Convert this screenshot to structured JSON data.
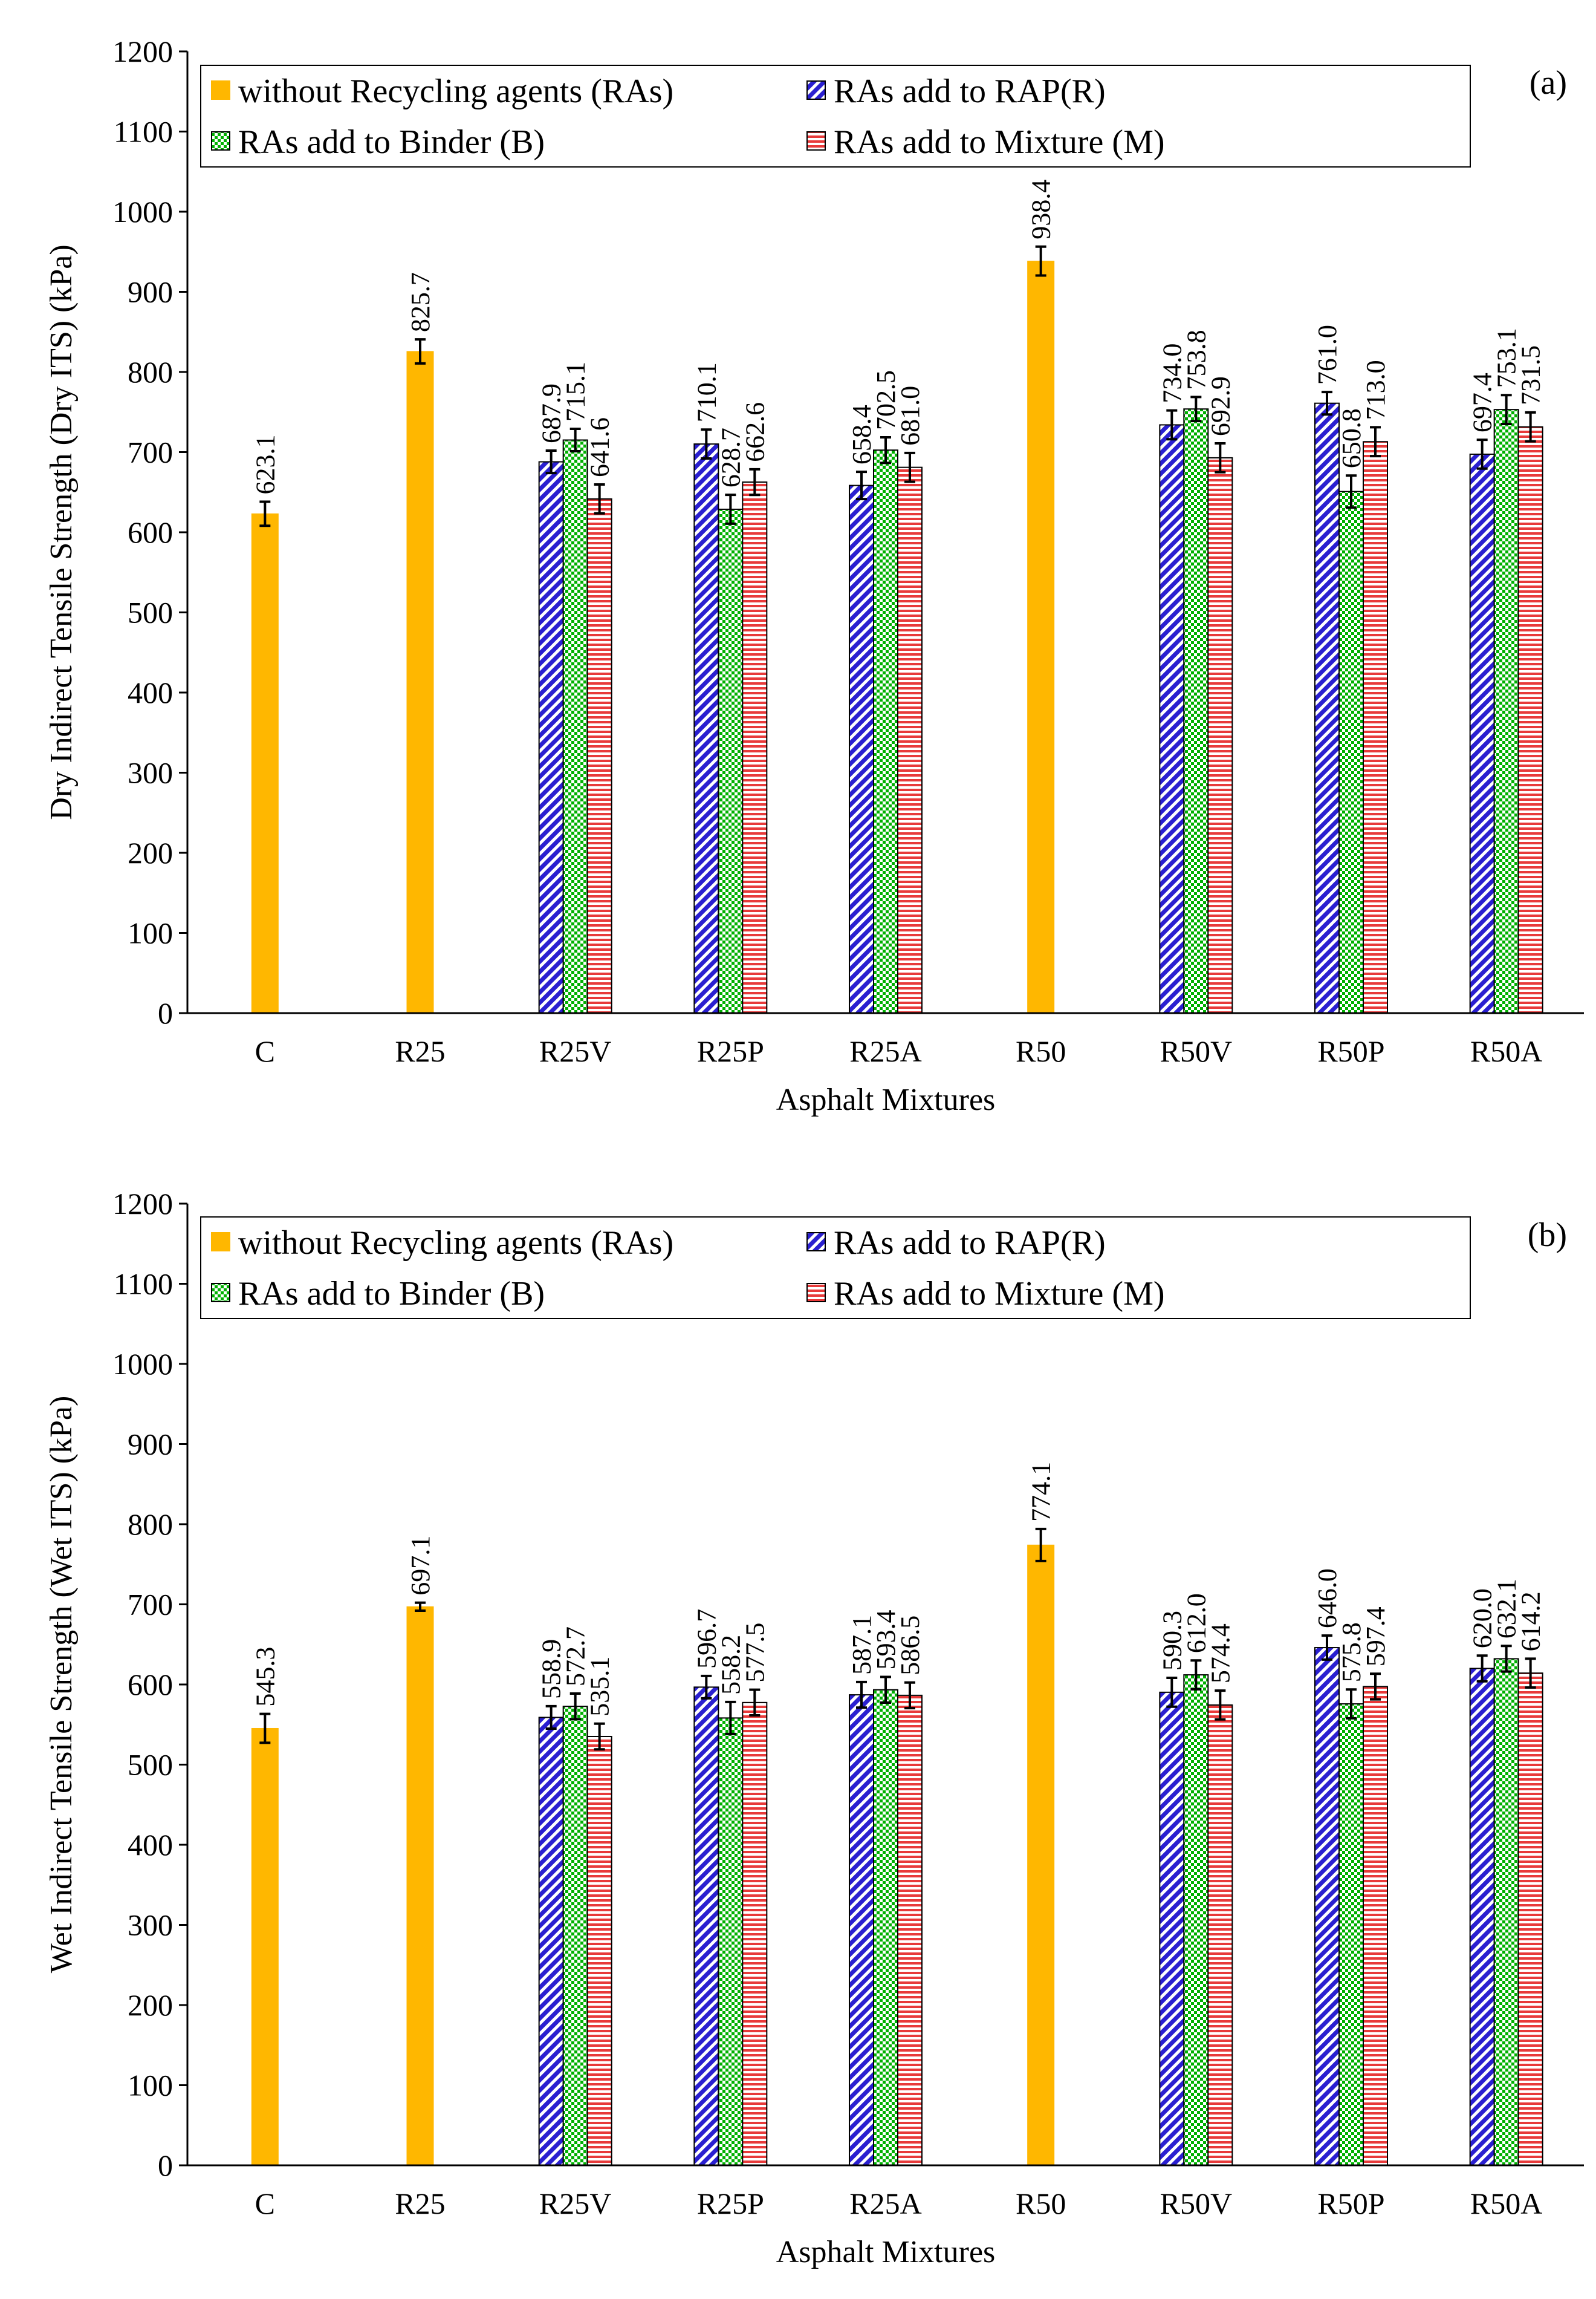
{
  "chart_data": [
    {
      "type": "bar",
      "panel_label": "(a)",
      "title": "",
      "xlabel": "Asphalt Mixtures",
      "ylabel": "Dry Indirect Tensile Strength (Dry ITS) (kPa)",
      "ylim": [
        0,
        1200
      ],
      "yticks": [
        0,
        100,
        200,
        300,
        400,
        500,
        600,
        700,
        800,
        900,
        1000,
        1100,
        1200
      ],
      "categories": [
        "C",
        "R25",
        "R25V",
        "R25P",
        "R25A",
        "R50",
        "R50V",
        "R50P",
        "R50A"
      ],
      "legend": [
        "without Recycling agents (RAs)",
        "RAs add to RAP(R)",
        "RAs add to Binder (B)",
        "RAs add to Mixture (M)"
      ],
      "legend_position": "top",
      "groups": [
        {
          "category": "C",
          "series": "none",
          "values": [
            623.1
          ],
          "labels": [
            "623.1"
          ],
          "errors": [
            15
          ]
        },
        {
          "category": "R25",
          "series": "none",
          "values": [
            825.7
          ],
          "labels": [
            "825.7"
          ],
          "errors": [
            15
          ]
        },
        {
          "category": "R25V",
          "series": "ras",
          "values": [
            687.9,
            715.1,
            641.6
          ],
          "labels": [
            "687.9",
            "715.1",
            "641.6"
          ],
          "errors": [
            14,
            14,
            18
          ]
        },
        {
          "category": "R25P",
          "series": "ras",
          "values": [
            710.1,
            628.7,
            662.6
          ],
          "labels": [
            "710.1",
            "628.7",
            "662.6"
          ],
          "errors": [
            18,
            18,
            16
          ]
        },
        {
          "category": "R25A",
          "series": "ras",
          "values": [
            658.4,
            702.5,
            681.0
          ],
          "labels": [
            "658.4",
            "702.5",
            "681.0"
          ],
          "errors": [
            17,
            16,
            18
          ]
        },
        {
          "category": "R50",
          "series": "none",
          "values": [
            938.4
          ],
          "labels": [
            "938.4"
          ],
          "errors": [
            18
          ]
        },
        {
          "category": "R50V",
          "series": "ras",
          "values": [
            734.0,
            753.8,
            692.9
          ],
          "labels": [
            "734.0",
            "753.8",
            "692.9"
          ],
          "errors": [
            18,
            15,
            18
          ]
        },
        {
          "category": "R50P",
          "series": "ras",
          "values": [
            761.0,
            650.8,
            713.0
          ],
          "labels": [
            "761.0",
            "650.8",
            "713.0"
          ],
          "errors": [
            14,
            20,
            18
          ]
        },
        {
          "category": "R50A",
          "series": "ras",
          "values": [
            697.4,
            753.1,
            731.5
          ],
          "labels": [
            "697.4",
            "753.1",
            "731.5"
          ],
          "errors": [
            18,
            18,
            18
          ]
        }
      ]
    },
    {
      "type": "bar",
      "panel_label": "(b)",
      "title": "",
      "xlabel": "Asphalt Mixtures",
      "ylabel": "Wet Indirect Tensile Strength (Wet ITS)  (kPa)",
      "ylim": [
        0,
        1200
      ],
      "yticks": [
        0,
        100,
        200,
        300,
        400,
        500,
        600,
        700,
        800,
        900,
        1000,
        1100,
        1200
      ],
      "categories": [
        "C",
        "R25",
        "R25V",
        "R25P",
        "R25A",
        "R50",
        "R50V",
        "R50P",
        "R50A"
      ],
      "legend": [
        "without Recycling agents (RAs)",
        "RAs add to RAP(R)",
        "RAs add to Binder (B)",
        "RAs add to Mixture (M)"
      ],
      "legend_position": "top",
      "groups": [
        {
          "category": "C",
          "series": "none",
          "values": [
            545.3
          ],
          "labels": [
            "545.3"
          ],
          "errors": [
            18
          ]
        },
        {
          "category": "R25",
          "series": "none",
          "values": [
            697.1
          ],
          "labels": [
            "697.1"
          ],
          "errors": [
            5
          ]
        },
        {
          "category": "R25V",
          "series": "ras",
          "values": [
            558.9,
            572.7,
            535.1
          ],
          "labels": [
            "558.9",
            "572.7",
            "535.1"
          ],
          "errors": [
            14,
            16,
            16
          ]
        },
        {
          "category": "R25P",
          "series": "ras",
          "values": [
            596.7,
            558.2,
            577.5
          ],
          "labels": [
            "596.7",
            "558.2",
            "577.5"
          ],
          "errors": [
            14,
            20,
            16
          ]
        },
        {
          "category": "R25A",
          "series": "ras",
          "values": [
            587.1,
            593.4,
            586.5
          ],
          "labels": [
            "587.1",
            "593.4",
            "586.5"
          ],
          "errors": [
            16,
            16,
            16
          ]
        },
        {
          "category": "R50",
          "series": "none",
          "values": [
            774.1
          ],
          "labels": [
            "774.1"
          ],
          "errors": [
            20
          ]
        },
        {
          "category": "R50V",
          "series": "ras",
          "values": [
            590.3,
            612.0,
            574.4
          ],
          "labels": [
            "590.3",
            "612.0",
            "574.4"
          ],
          "errors": [
            18,
            18,
            18
          ]
        },
        {
          "category": "R50P",
          "series": "ras",
          "values": [
            646.0,
            575.8,
            597.4
          ],
          "labels": [
            "646.0",
            "575.8",
            "597.4"
          ],
          "errors": [
            15,
            18,
            16
          ]
        },
        {
          "category": "R50A",
          "series": "ras",
          "values": [
            620.0,
            632.1,
            614.2
          ],
          "labels": [
            "620.0",
            "632.1",
            "614.2"
          ],
          "errors": [
            16,
            16,
            18
          ]
        }
      ]
    }
  ],
  "colors": {
    "none": "#FFB700",
    "none_stroke": "#B8860B",
    "rap": "#2A1FD0",
    "binder": "#00B000",
    "mixture": "#E83A3A",
    "bar_stroke": "#000000"
  }
}
